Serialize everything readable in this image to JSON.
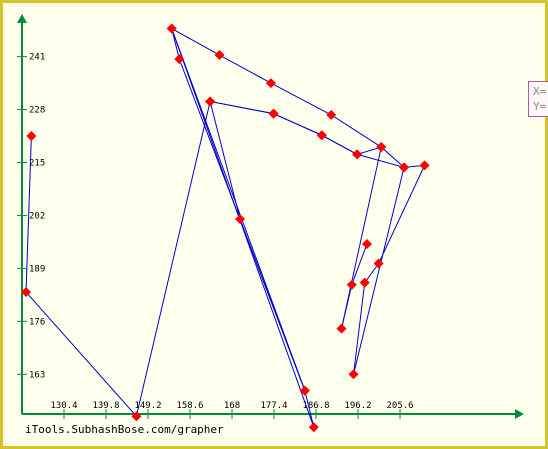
{
  "chart_data": {
    "type": "line",
    "title": "",
    "xlabel": "",
    "ylabel": "",
    "xlim": [
      121,
      232
    ],
    "ylim": [
      153,
      250
    ],
    "x_ticks": [
      "130.4",
      "139.8",
      "149.2",
      "158.6",
      "168",
      "177.4",
      "186.8",
      "196.2",
      "205.6"
    ],
    "y_ticks": [
      "163",
      "176",
      "189",
      "202",
      "215",
      "228",
      "241"
    ],
    "grid": false,
    "series": [
      {
        "color": "#0000cc",
        "marker_color": "#ff0000",
        "points": [
          [
            123.1,
            221.5
          ],
          [
            121.9,
            183.2
          ],
          [
            146.6,
            152.7
          ],
          [
            163.1,
            230.0
          ],
          [
            169.8,
            201.1
          ],
          [
            184.3,
            159.0
          ],
          [
            156.2,
            240.4
          ],
          [
            154.5,
            247.9
          ],
          [
            186.3,
            150.0
          ],
          [
            184.3,
            159.0
          ],
          [
            154.5,
            247.9
          ],
          [
            165.2,
            241.4
          ],
          [
            176.7,
            234.5
          ],
          [
            190.2,
            226.7
          ],
          [
            201.4,
            218.8
          ],
          [
            206.5,
            213.8
          ],
          [
            211.1,
            214.3
          ],
          [
            200.8,
            190.2
          ],
          [
            197.7,
            185.5
          ],
          [
            195.2,
            163.0
          ],
          [
            206.5,
            213.8
          ],
          [
            196.0,
            217.0
          ],
          [
            188.1,
            221.7
          ],
          [
            177.3,
            227.0
          ],
          [
            163.1,
            230.0
          ],
          [
            177.3,
            227.0
          ],
          [
            188.1,
            221.7
          ],
          [
            196.0,
            217.0
          ],
          [
            201.4,
            218.8
          ],
          [
            192.5,
            174.2
          ],
          [
            194.8,
            185.0
          ],
          [
            198.2,
            195.0
          ]
        ]
      }
    ]
  },
  "watermark": "iTools.SubhashBose.com/grapher",
  "tooltip": {
    "x_label": "X=",
    "y_label": "Y="
  },
  "colors": {
    "axis": "#008c3a",
    "line": "#0000cc",
    "marker": "#ff0000",
    "frame": "#d4c428",
    "background": "#ffffee"
  }
}
